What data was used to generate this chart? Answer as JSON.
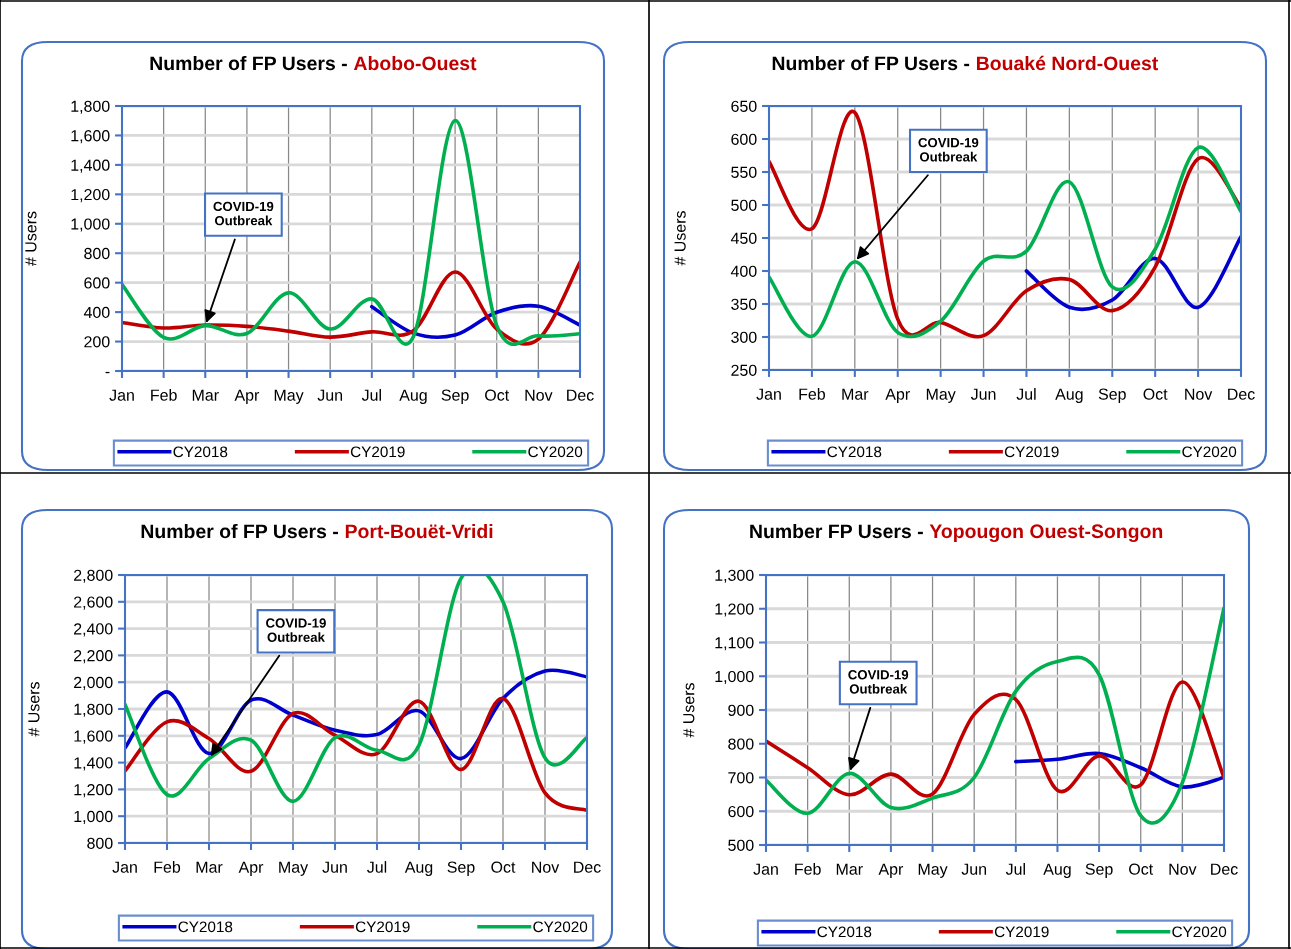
{
  "chart_data": [
    {
      "type": "line",
      "title": "Number of FP Users -",
      "subtitle": "Abobo-Ouest",
      "ylabel": "# Users",
      "legend": "bottom",
      "grid": true,
      "line_style": "solid",
      "marker": "none",
      "categories": [
        "Jan",
        "Feb",
        "Mar",
        "Apr",
        "May",
        "Jun",
        "Jul",
        "Aug",
        "Sep",
        "Oct",
        "Nov",
        "Dec"
      ],
      "ylim": [
        0,
        1800
      ],
      "yticks": [
        {
          "value": 0,
          "label": "-"
        },
        200,
        400,
        600,
        800,
        {
          "value": 1000,
          "label": "1,000"
        },
        {
          "value": 1200,
          "label": "1,200"
        },
        {
          "value": 1400,
          "label": "1,400"
        },
        {
          "value": 1600,
          "label": "1,600"
        },
        {
          "value": 1800,
          "label": "1,800"
        }
      ],
      "series": [
        {
          "name": "CY2018",
          "color": "#0000cc",
          "values": [
            null,
            null,
            null,
            null,
            null,
            null,
            437,
            257,
            244,
            399,
            440,
            312
          ]
        },
        {
          "name": "CY2019",
          "color": "#c00000",
          "values": [
            330,
            292,
            312,
            303,
            271,
            230,
            266,
            273,
            672,
            285,
            216,
            740
          ]
        },
        {
          "name": "CY2020",
          "color": "#00b050",
          "values": [
            588,
            228,
            308,
            255,
            531,
            285,
            490,
            235,
            1701,
            308,
            239,
            253
          ]
        }
      ],
      "annotations": [
        {
          "text": "COVID-19\nOutbreak",
          "x": "Mar",
          "y": 308
        }
      ]
    },
    {
      "type": "line",
      "title": "Number of FP Users -",
      "subtitle": "Bouaké Nord-Ouest",
      "ylabel": "# Users",
      "legend": "bottom",
      "grid": true,
      "line_style": "solid",
      "marker": "none",
      "categories": [
        "Jan",
        "Feb",
        "Mar",
        "Apr",
        "May",
        "Jun",
        "Jul",
        "Aug",
        "Sep",
        "Oct",
        "Nov",
        "Dec"
      ],
      "ylim": [
        250,
        650
      ],
      "yticks": [
        250,
        300,
        350,
        400,
        450,
        500,
        550,
        600,
        650
      ],
      "series": [
        {
          "name": "CY2018",
          "color": "#0000cc",
          "values": [
            null,
            null,
            null,
            null,
            null,
            null,
            400,
            345,
            356,
            419,
            345,
            452
          ]
        },
        {
          "name": "CY2019",
          "color": "#c00000",
          "values": [
            566,
            464,
            640,
            327,
            322,
            302,
            370,
            387,
            340,
            406,
            570,
            496
          ]
        },
        {
          "name": "CY2020",
          "color": "#00b050",
          "values": [
            391,
            301,
            414,
            307,
            324,
            415,
            430,
            535,
            376,
            433,
            587,
            490
          ]
        }
      ],
      "annotations": [
        {
          "text": "COVID-19\nOutbreak",
          "x": "Mar",
          "y": 414
        }
      ]
    },
    {
      "type": "line",
      "title": "Number of FP Users -",
      "subtitle": "Port-Bouët-Vridi",
      "ylabel": "# Users",
      "legend": "bottom",
      "grid": true,
      "line_style": "solid",
      "marker": "none",
      "categories": [
        "Jan",
        "Feb",
        "Mar",
        "Apr",
        "May",
        "Jun",
        "Jul",
        "Aug",
        "Sep",
        "Oct",
        "Nov",
        "Dec"
      ],
      "ylim": [
        800,
        2800
      ],
      "yticks": [
        800,
        {
          "value": 1000,
          "label": "1,000"
        },
        {
          "value": 1200,
          "label": "1,200"
        },
        {
          "value": 1400,
          "label": "1,400"
        },
        {
          "value": 1600,
          "label": "1,600"
        },
        {
          "value": 1800,
          "label": "1,800"
        },
        {
          "value": 2000,
          "label": "2,000"
        },
        {
          "value": 2200,
          "label": "2,200"
        },
        {
          "value": 2400,
          "label": "2,400"
        },
        {
          "value": 2600,
          "label": "2,600"
        },
        {
          "value": 2800,
          "label": "2,800"
        }
      ],
      "series": [
        {
          "name": "CY2018",
          "color": "#0000cc",
          "values": [
            1510,
            1928,
            1468,
            1866,
            1754,
            1642,
            1609,
            1786,
            1430,
            1878,
            2083,
            2040
          ]
        },
        {
          "name": "CY2019",
          "color": "#c00000",
          "values": [
            1338,
            1704,
            1580,
            1335,
            1766,
            1604,
            1467,
            1858,
            1348,
            1878,
            1174,
            1044
          ]
        },
        {
          "name": "CY2020",
          "color": "#00b050",
          "values": [
            1834,
            1161,
            1430,
            1567,
            1111,
            1585,
            1492,
            1530,
            2775,
            2600,
            1435,
            1587
          ]
        }
      ],
      "annotations": [
        {
          "text": "COVID-19\nOutbreak",
          "x": "Mar",
          "y": 1430
        }
      ]
    },
    {
      "type": "line",
      "title": "Number FP Users -",
      "subtitle": "Yopougon Ouest-Songon",
      "ylabel": "# Users",
      "legend": "bottom",
      "grid": true,
      "line_style": "solid",
      "marker": "none",
      "categories": [
        "Jan",
        "Feb",
        "Mar",
        "Apr",
        "May",
        "Jun",
        "Jul",
        "Aug",
        "Sep",
        "Oct",
        "Nov",
        "Dec"
      ],
      "ylim": [
        500,
        1300
      ],
      "yticks": [
        500,
        600,
        700,
        800,
        900,
        {
          "value": 1000,
          "label": "1,000"
        },
        {
          "value": 1100,
          "label": "1,100"
        },
        {
          "value": 1200,
          "label": "1,200"
        },
        {
          "value": 1300,
          "label": "1,300"
        }
      ],
      "series": [
        {
          "name": "CY2018",
          "color": "#0000cc",
          "values": [
            null,
            null,
            null,
            null,
            null,
            null,
            747,
            754,
            771,
            729,
            672,
            700
          ]
        },
        {
          "name": "CY2019",
          "color": "#c00000",
          "values": [
            808,
            729,
            649,
            710,
            651,
            887,
            931,
            662,
            764,
            678,
            983,
            700
          ]
        },
        {
          "name": "CY2020",
          "color": "#00b050",
          "values": [
            692,
            594,
            712,
            611,
            639,
            700,
            956,
            1044,
            1005,
            587,
            685,
            1202
          ]
        }
      ],
      "annotations": [
        {
          "text": "COVID-19\nOutbreak",
          "x": "Mar",
          "y": 712
        }
      ]
    }
  ]
}
